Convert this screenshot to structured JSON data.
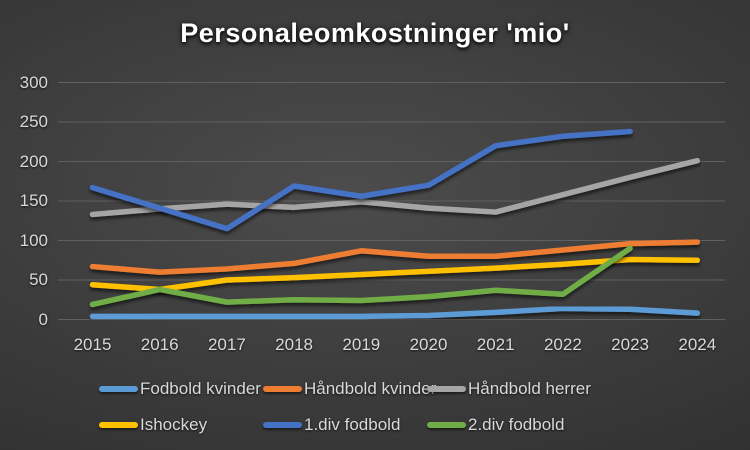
{
  "title": "Personaleomkostninger 'mio'",
  "axis": {
    "y_tick_labels": [
      "0",
      "50",
      "100",
      "150",
      "200",
      "250",
      "300"
    ],
    "x_tick_labels": [
      "2015",
      "2016",
      "2017",
      "2018",
      "2019",
      "2020",
      "2021",
      "2022",
      "2023",
      "2024"
    ]
  },
  "colors": {
    "background_center": "#4c4c4c",
    "background_corner": "#222222",
    "gridline": "#606060",
    "text": "#d9d9d9",
    "title_text": "#ffffff"
  },
  "chart_data": {
    "type": "line",
    "title": "Personaleomkostninger 'mio'",
    "xlabel": "",
    "ylabel": "",
    "categories": [
      2015,
      2016,
      2017,
      2018,
      2019,
      2020,
      2021,
      2022,
      2023,
      2024
    ],
    "ylim": [
      0,
      300
    ],
    "ytick_step": 50,
    "grid": "horizontal",
    "legend_position": "bottom",
    "series": [
      {
        "name": "Fodbold kvinder",
        "color": "#5B9BD5",
        "values": [
          4,
          4,
          4,
          4,
          4,
          5,
          9,
          14,
          13,
          8
        ]
      },
      {
        "name": "Håndbold kvinder",
        "color": "#ED7D31",
        "values": [
          67,
          60,
          64,
          71,
          87,
          80,
          80,
          88,
          96,
          98
        ]
      },
      {
        "name": "Håndbold herrer",
        "color": "#A5A5A5",
        "values": [
          133,
          140,
          146,
          142,
          149,
          141,
          136,
          158,
          180,
          201
        ]
      },
      {
        "name": "Ishockey",
        "color": "#FFC000",
        "values": [
          44,
          38,
          50,
          53,
          57,
          61,
          65,
          70,
          76,
          75
        ]
      },
      {
        "name": "1.div fodbold",
        "color": "#4472C4",
        "values": [
          167,
          141,
          115,
          169,
          156,
          170,
          220,
          232,
          238,
          null
        ]
      },
      {
        "name": "2.div fodbold",
        "color": "#70AD47",
        "values": [
          19,
          38,
          22,
          25,
          24,
          29,
          37,
          32,
          90,
          null
        ]
      }
    ]
  }
}
